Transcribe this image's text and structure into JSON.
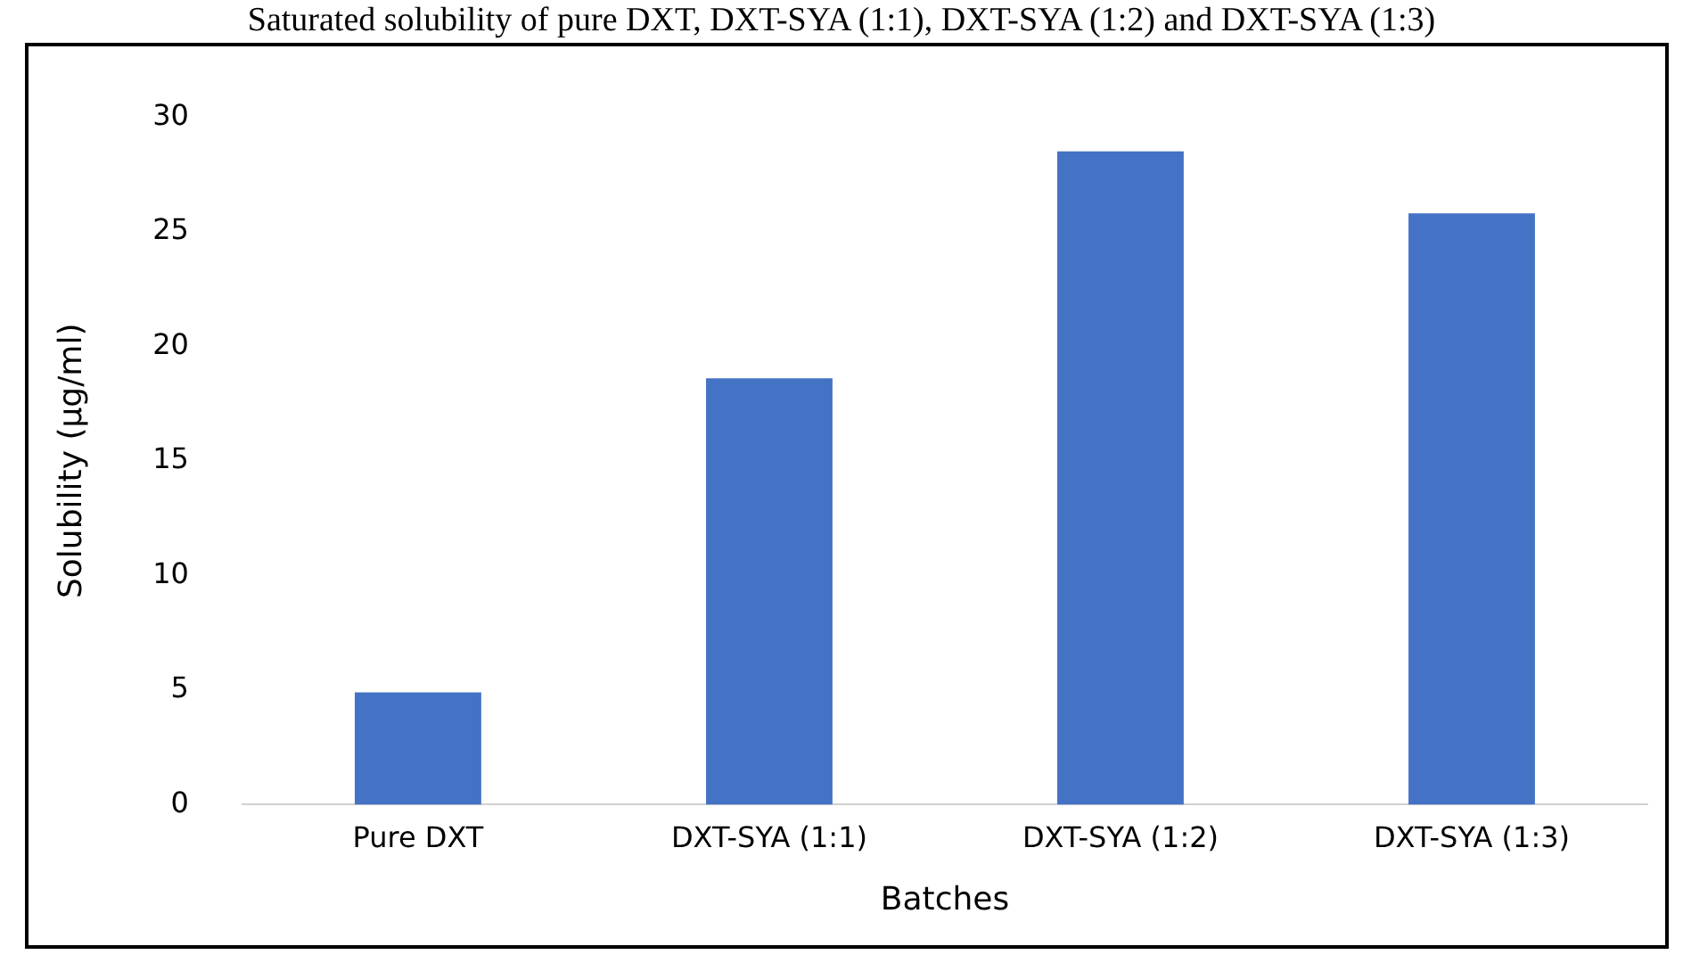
{
  "chart_data": {
    "type": "bar",
    "title": "Saturated solubility of pure DXT, DXT-SYA (1:1), DXT-SYA (1:2) and DXT-SYA (1:3)",
    "xlabel": "Batches",
    "ylabel": "Solubility (µg/ml)",
    "categories": [
      "Pure DXT",
      "DXT-SYA (1:1)",
      "DXT-SYA (1:2)",
      "DXT-SYA (1:3)"
    ],
    "values": [
      4.9,
      18.6,
      28.5,
      25.8
    ],
    "color": "#4472c4",
    "ylim": [
      0,
      30
    ],
    "yticks": [
      0,
      5,
      10,
      15,
      20,
      25,
      30
    ],
    "grid": false
  }
}
